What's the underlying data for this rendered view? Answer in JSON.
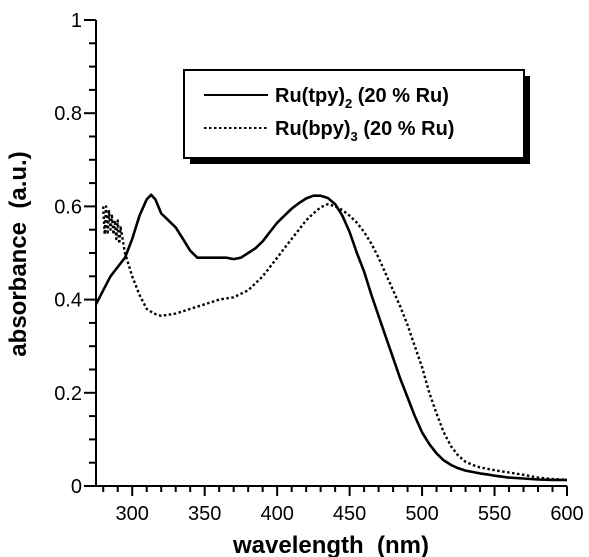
{
  "chart_data": {
    "type": "line",
    "xlabel": "wavelength  (nm)",
    "ylabel": "absorbance  (a.u.)",
    "xlim": [
      275,
      600
    ],
    "ylim": [
      0,
      1
    ],
    "x_ticks": [
      "300",
      "350",
      "400",
      "450",
      "500",
      "550",
      "600"
    ],
    "y_ticks": [
      "0",
      "0.2",
      "0.4",
      "0.6",
      "0.8",
      "1"
    ],
    "grid": false,
    "legend_position": "top-right",
    "series": [
      {
        "name": "Ru(tpy)2 (20 % Ru)",
        "legend_main": "Ru(tpy)",
        "legend_sub": "2",
        "legend_tail": " (20 % Ru)",
        "style": "solid",
        "color": "#000000",
        "x": [
          275,
          280,
          285,
          290,
          295,
          300,
          305,
          310,
          313,
          316,
          320,
          325,
          330,
          335,
          340,
          345,
          350,
          355,
          360,
          365,
          370,
          375,
          380,
          385,
          390,
          395,
          400,
          405,
          410,
          415,
          420,
          425,
          430,
          435,
          440,
          445,
          450,
          455,
          460,
          465,
          470,
          475,
          480,
          485,
          490,
          495,
          500,
          505,
          510,
          515,
          520,
          525,
          530,
          535,
          540,
          545,
          550,
          560,
          570,
          580,
          590,
          600
        ],
        "y": [
          0.39,
          0.42,
          0.45,
          0.47,
          0.49,
          0.53,
          0.58,
          0.615,
          0.625,
          0.615,
          0.585,
          0.57,
          0.555,
          0.53,
          0.505,
          0.49,
          0.49,
          0.49,
          0.49,
          0.49,
          0.487,
          0.49,
          0.5,
          0.51,
          0.525,
          0.545,
          0.565,
          0.58,
          0.595,
          0.607,
          0.617,
          0.623,
          0.623,
          0.618,
          0.605,
          0.58,
          0.545,
          0.5,
          0.46,
          0.41,
          0.365,
          0.32,
          0.275,
          0.23,
          0.19,
          0.15,
          0.115,
          0.09,
          0.07,
          0.055,
          0.045,
          0.038,
          0.033,
          0.03,
          0.027,
          0.025,
          0.022,
          0.018,
          0.016,
          0.014,
          0.013,
          0.013
        ]
      },
      {
        "name": "Ru(bpy)3 (20 % Ru)",
        "legend_main": "Ru(bpy)",
        "legend_sub": "3",
        "legend_tail": " (20 % Ru)",
        "style": "dotted",
        "color": "#000000",
        "x": [
          280,
          281,
          282,
          283,
          284,
          285,
          286,
          287,
          288,
          289,
          290,
          291,
          292,
          295,
          300,
          305,
          310,
          315,
          320,
          330,
          340,
          350,
          360,
          370,
          380,
          390,
          400,
          405,
          410,
          415,
          420,
          425,
          430,
          435,
          440,
          445,
          450,
          455,
          460,
          465,
          470,
          475,
          480,
          485,
          490,
          495,
          500,
          505,
          510,
          515,
          520,
          525,
          530,
          535,
          540,
          550,
          560,
          570,
          580,
          590,
          600
        ],
        "y": [
          0.6,
          0.54,
          0.6,
          0.54,
          0.59,
          0.55,
          0.58,
          0.54,
          0.57,
          0.53,
          0.57,
          0.52,
          0.555,
          0.5,
          0.45,
          0.41,
          0.38,
          0.37,
          0.365,
          0.37,
          0.38,
          0.39,
          0.4,
          0.405,
          0.42,
          0.45,
          0.49,
          0.51,
          0.53,
          0.55,
          0.57,
          0.585,
          0.598,
          0.605,
          0.6,
          0.592,
          0.58,
          0.565,
          0.545,
          0.52,
          0.49,
          0.455,
          0.42,
          0.385,
          0.345,
          0.3,
          0.255,
          0.2,
          0.155,
          0.115,
          0.085,
          0.065,
          0.052,
          0.045,
          0.04,
          0.034,
          0.029,
          0.024,
          0.018,
          0.015,
          0.013
        ]
      }
    ]
  }
}
